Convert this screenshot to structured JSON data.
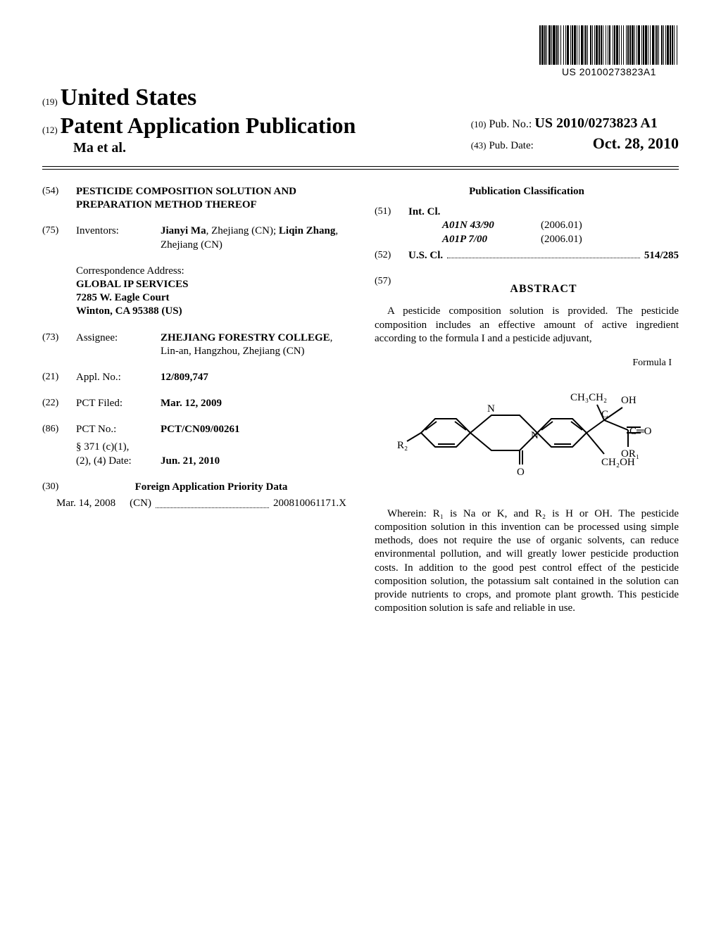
{
  "barcode": {
    "number": "US 20100273823A1",
    "bar_widths": [
      2,
      1,
      3,
      1,
      2,
      1,
      1,
      2,
      3,
      1,
      1,
      1,
      4,
      1,
      2,
      1,
      1,
      2,
      1,
      3,
      1,
      2,
      1,
      1,
      3,
      2,
      1,
      1,
      2,
      1,
      3,
      1,
      1,
      2,
      1,
      2,
      3,
      1,
      1,
      1,
      2,
      1,
      1,
      3,
      2,
      1,
      1,
      2,
      1,
      1,
      3,
      1,
      2,
      1,
      2,
      1,
      1,
      3,
      1,
      2,
      1,
      1,
      2,
      3,
      1,
      1,
      2,
      1,
      3,
      1,
      1,
      2,
      1,
      2,
      1,
      3,
      1,
      1,
      2,
      1,
      2,
      1,
      3,
      1,
      1,
      2,
      1,
      1,
      3,
      2,
      1,
      1,
      2,
      1,
      3,
      1,
      1,
      2,
      1,
      2,
      3,
      1,
      1,
      1,
      2,
      1,
      1,
      3,
      2,
      1,
      1,
      2,
      1,
      1,
      3,
      1,
      2,
      1,
      2,
      1,
      1,
      3,
      1,
      2
    ]
  },
  "header": {
    "code19": "(19)",
    "country": "United States",
    "code12": "(12)",
    "doctype": "Patent Application Publication",
    "authors_line": "Ma et al.",
    "code10": "(10)",
    "pubno_label": "Pub. No.:",
    "pubno": "US 2010/0273823 A1",
    "code43": "(43)",
    "pubdate_label": "Pub. Date:",
    "pubdate": "Oct. 28, 2010"
  },
  "left": {
    "f54": {
      "tag": "(54)",
      "text": "PESTICIDE COMPOSITION SOLUTION AND PREPARATION METHOD THEREOF"
    },
    "f75": {
      "tag": "(75)",
      "label": "Inventors:",
      "value_html": "<b>Jianyi Ma</b>, Zhejiang (CN); <b>Liqin Zhang</b>, Zhejiang (CN)"
    },
    "corr": {
      "l1": "Correspondence Address:",
      "l2": "GLOBAL IP SERVICES",
      "l3": "7285 W. Eagle Court",
      "l4": "Winton, CA 95388 (US)"
    },
    "f73": {
      "tag": "(73)",
      "label": "Assignee:",
      "value_html": "<b>ZHEJIANG FORESTRY COLLEGE</b>, Lin-an, Hangzhou, Zhejiang (CN)"
    },
    "f21": {
      "tag": "(21)",
      "label": "Appl. No.:",
      "value": "12/809,747"
    },
    "f22": {
      "tag": "(22)",
      "label": "PCT Filed:",
      "value": "Mar. 12, 2009"
    },
    "f86": {
      "tag": "(86)",
      "label": "PCT No.:",
      "value": "PCT/CN09/00261",
      "sub_label": "§ 371 (c)(1),\n(2), (4) Date:",
      "sub_value": "Jun. 21, 2010"
    },
    "f30": {
      "tag": "(30)",
      "title": "Foreign Application Priority Data",
      "date": "Mar. 14, 2008",
      "cc": "(CN)",
      "num": "200810061171.X"
    }
  },
  "right": {
    "pubclass_title": "Publication Classification",
    "f51": {
      "tag": "(51)",
      "label": "Int. Cl.",
      "rows": [
        {
          "code": "A01N 43/90",
          "date": "(2006.01)"
        },
        {
          "code": "A01P 7/00",
          "date": "(2006.01)"
        }
      ]
    },
    "f52": {
      "tag": "(52)",
      "label": "U.S. Cl.",
      "value": "514/285"
    },
    "f57": {
      "tag": "(57)",
      "title": "ABSTRACT"
    },
    "abs1": "A pesticide composition solution is provided. The pesticide composition includes an effective amount of active ingredient according to the formula I and a pesticide adjuvant,",
    "formula_label": "Formula I",
    "formula_text": {
      "ch3ch2": "CH₃CH₂",
      "oh": "OH",
      "n1": "N",
      "n2": "N",
      "c": "C",
      "co": "C═O",
      "or1": "OR₁",
      "ch2oh": "CH₂OH",
      "o": "O",
      "r2": "R₂"
    },
    "abs2": "Wherein: R₁ is Na or K, and R₂ is H or OH. The pesticide composition solution in this invention can be processed using simple methods, does not require the use of organic solvents, can reduce environmental pollution, and will greatly lower pesticide production costs. In addition to the good pest control effect of the pesticide composition solution, the potassium salt contained in the solution can provide nutrients to crops, and promote plant growth. This pesticide composition solution is safe and reliable in use."
  },
  "style": {
    "page_bg": "#ffffff",
    "text_color": "#000000",
    "rule_color": "#000000",
    "font_family": "Times New Roman",
    "title_fontsize_pt": 24,
    "body_fontsize_pt": 11
  }
}
